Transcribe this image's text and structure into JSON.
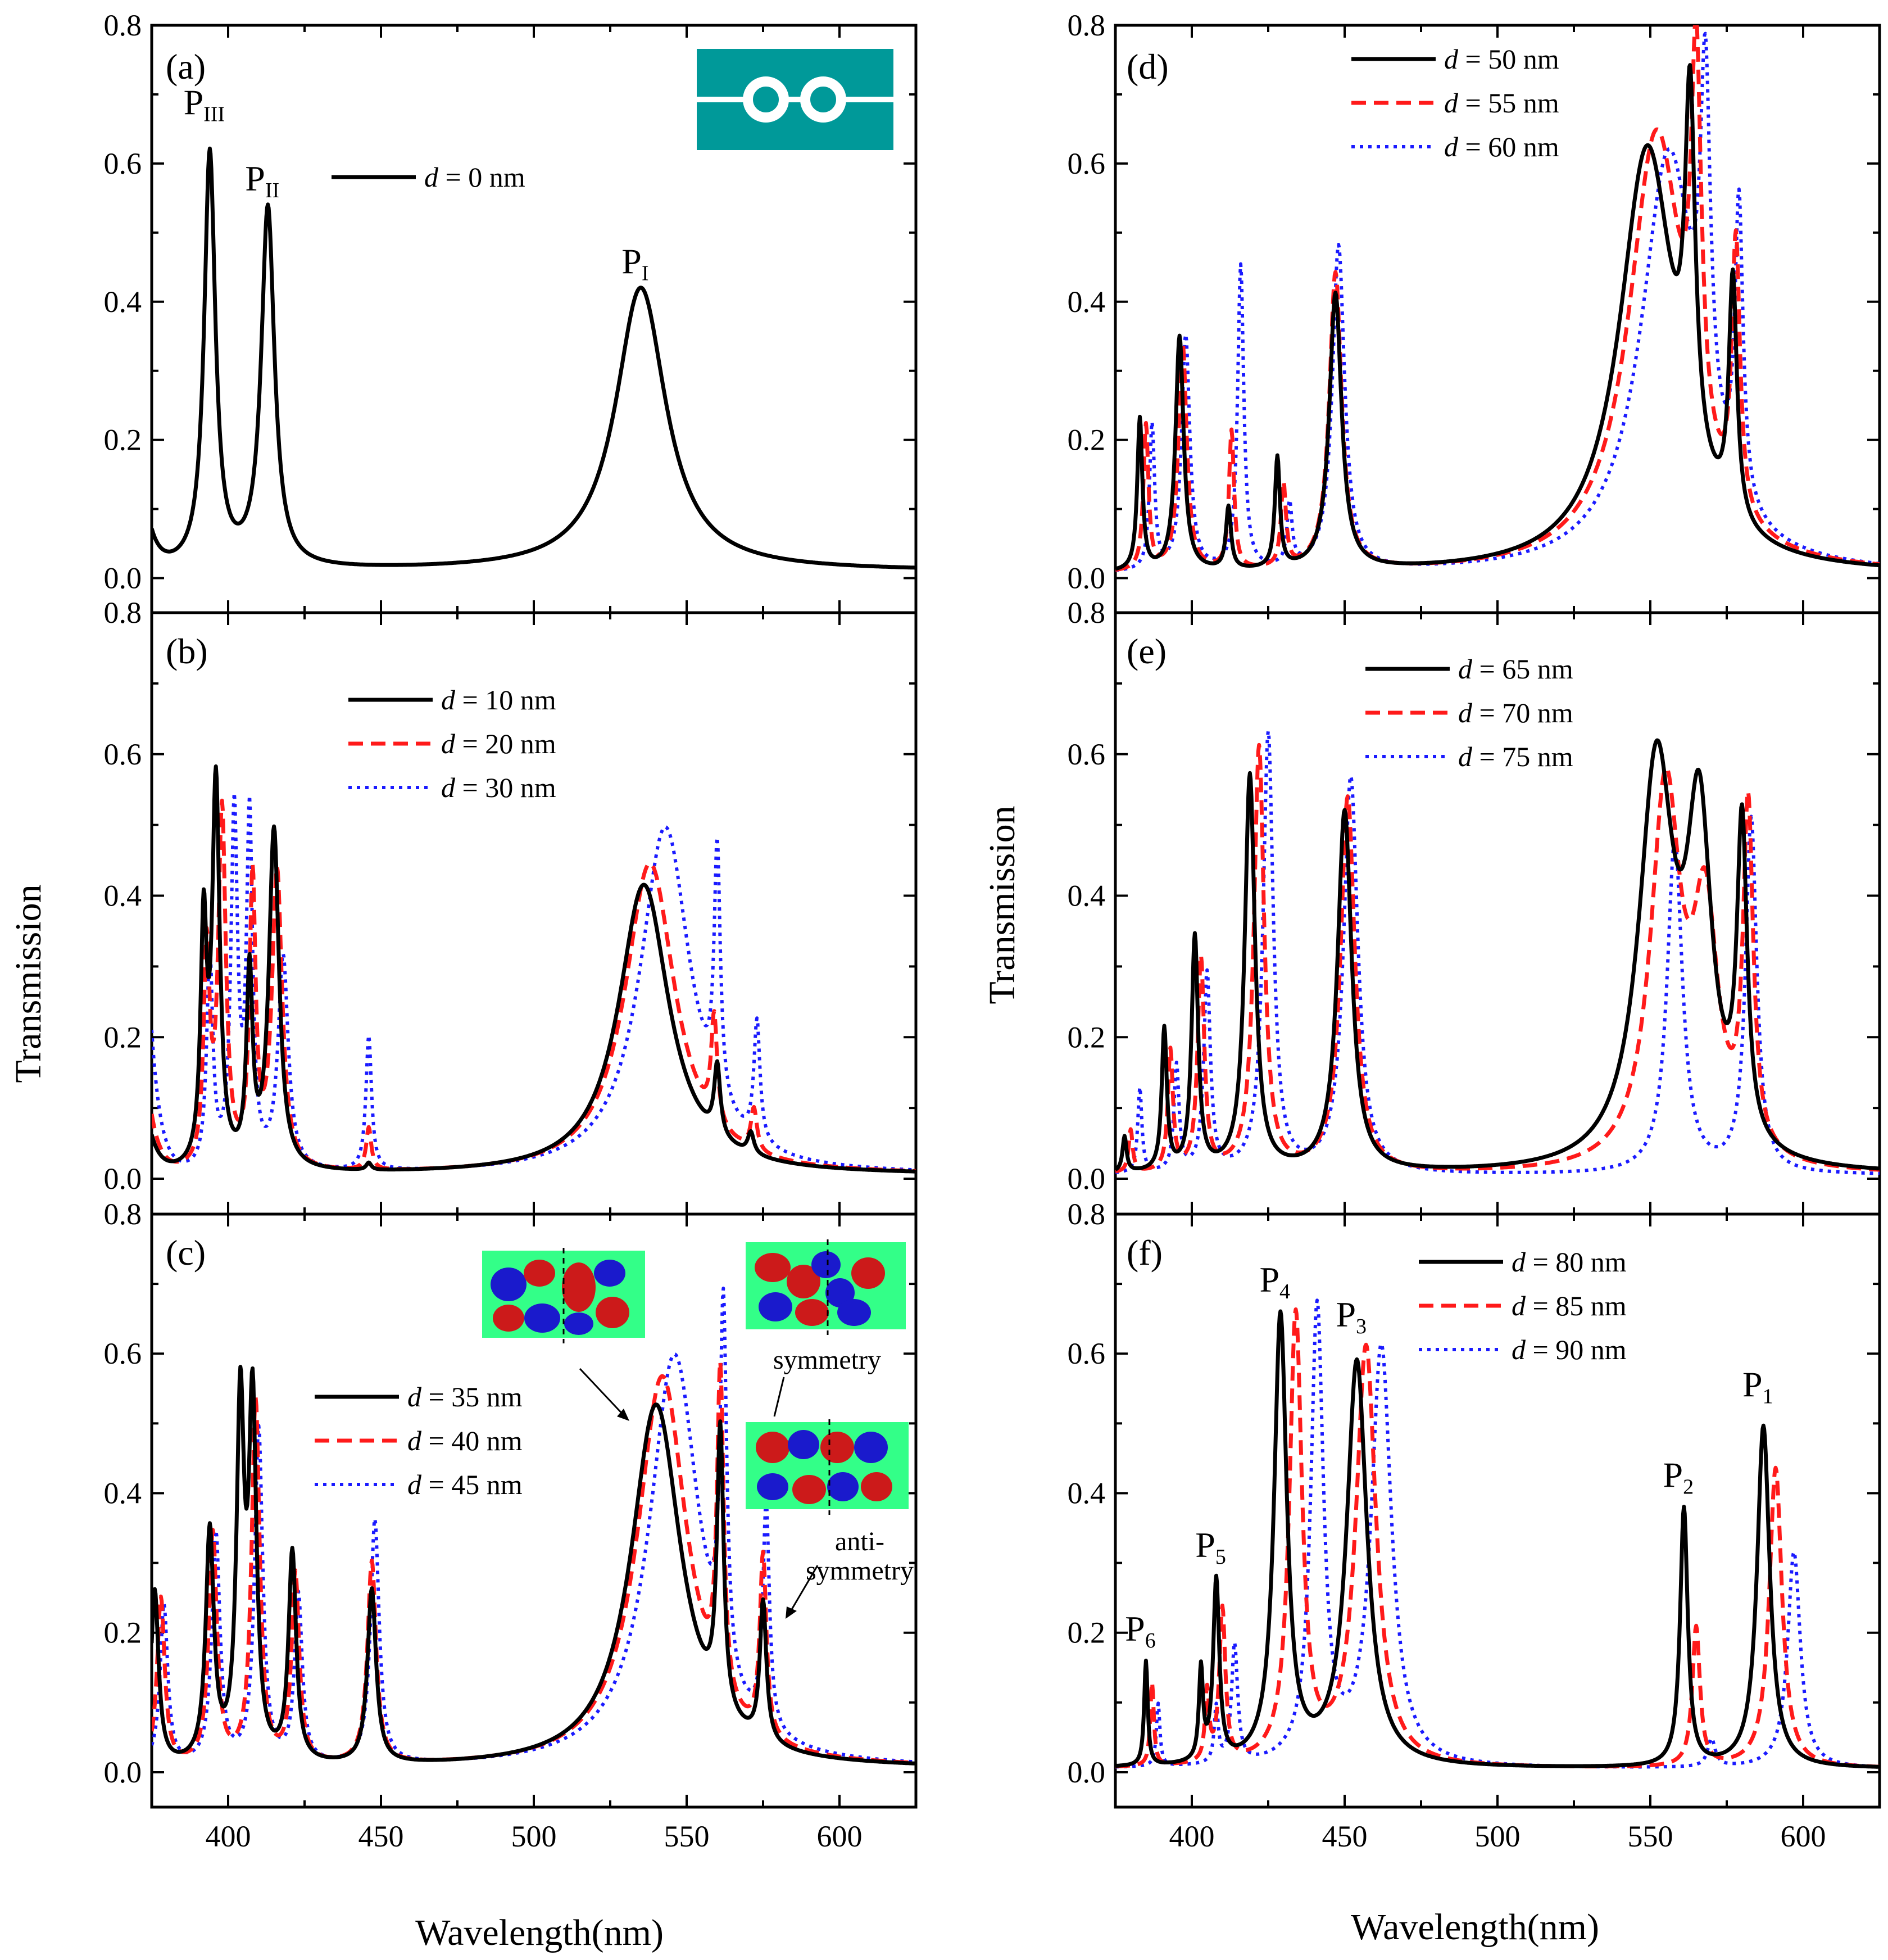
{
  "figure": {
    "x_axis_title": "Wavelength(nm)",
    "y_axis_title": "Transmission",
    "x_range": [
      375,
      625
    ],
    "y_range": [
      -0.05,
      0.8
    ],
    "x_ticks": [
      "400",
      "450",
      "500",
      "550",
      "600"
    ],
    "y_ticks": [
      "0.0",
      "0.2",
      "0.4",
      "0.6",
      "0.8"
    ],
    "colors": {
      "black": "#000000",
      "red": "#ff1a1a",
      "blue": "#1a1aff",
      "inset_bg": "#009999",
      "map_bg": "#33ff88"
    }
  },
  "chart_data": [
    {
      "panel": "a",
      "label": "(a)",
      "type": "line",
      "xlim": [
        375,
        625
      ],
      "ylim": [
        -0.05,
        0.8
      ],
      "series": [
        {
          "name": "d = 0 nm",
          "value": "0 nm",
          "style": "solid",
          "peaks": [
            [
              394,
              0.6,
              2.2
            ],
            [
              413,
              0.52,
              2.6
            ],
            [
              535,
              0.41,
              10
            ]
          ],
          "baseline": 0.01,
          "edge": 0.05
        }
      ],
      "peak_labels": [
        {
          "main": "P",
          "sub": "III",
          "x": 394,
          "y": 0.64
        },
        {
          "main": "P",
          "sub": "II",
          "x": 413,
          "y": 0.53
        },
        {
          "main": "P",
          "sub": "I",
          "x": 535,
          "y": 0.41
        }
      ]
    },
    {
      "panel": "b",
      "label": "(b)",
      "type": "line",
      "xlim": [
        375,
        625
      ],
      "ylim": [
        -0.05,
        0.8
      ],
      "series": [
        {
          "name": "d = 10 nm",
          "value": "10 nm",
          "style": "solid",
          "peaks": [
            [
              392,
              0.33,
              1.2
            ],
            [
              396,
              0.54,
              1.5
            ],
            [
              407,
              0.27,
              1.2
            ],
            [
              415,
              0.48,
              2.0
            ],
            [
              446,
              0.01,
              1
            ],
            [
              536,
              0.41,
              10
            ],
            [
              560,
              0.1,
              1.2
            ],
            [
              571,
              0.03,
              1.2
            ]
          ],
          "baseline": 0.005,
          "edge": 0.05
        },
        {
          "name": "d = 20 nm",
          "value": "20 nm",
          "style": "dashed",
          "peaks": [
            [
              393,
              0.3,
              1.2
            ],
            [
              398,
              0.5,
              1.5
            ],
            [
              408,
              0.4,
              1.2
            ],
            [
              416,
              0.42,
              2.0
            ],
            [
              446,
              0.06,
              1
            ],
            [
              538,
              0.44,
              10
            ],
            [
              559,
              0.15,
              1.2
            ],
            [
              572,
              0.06,
              1.2
            ]
          ],
          "baseline": 0.005,
          "edge": 0.08
        },
        {
          "name": "d = 30 nm",
          "value": "30 nm",
          "style": "dotted",
          "peaks": [
            [
              394,
              0.3,
              1.2
            ],
            [
              402,
              0.5,
              1.3
            ],
            [
              407,
              0.49,
              1.2
            ],
            [
              418,
              0.3,
              2.0
            ],
            [
              446,
              0.19,
              1.1
            ],
            [
              543,
              0.49,
              10
            ],
            [
              560,
              0.35,
              1.2
            ],
            [
              573,
              0.17,
              1.2
            ]
          ],
          "baseline": 0.005,
          "edge": 0.2
        }
      ]
    },
    {
      "panel": "c",
      "label": "(c)",
      "type": "line",
      "xlim": [
        375,
        625
      ],
      "ylim": [
        -0.05,
        0.8
      ],
      "series": [
        {
          "name": "d = 35 nm",
          "value": "35 nm",
          "style": "solid",
          "peaks": [
            [
              376,
              0.25,
              1.5
            ],
            [
              394,
              0.33,
              1.6
            ],
            [
              404,
              0.5,
              1.5
            ],
            [
              408,
              0.5,
              1.5
            ],
            [
              421,
              0.3,
              1.5
            ],
            [
              447,
              0.25,
              1.7
            ],
            [
              540,
              0.52,
              10
            ],
            [
              561,
              0.4,
              1.3
            ],
            [
              575,
              0.2,
              1.3
            ]
          ],
          "baseline": 0.005,
          "edge": 0.0
        },
        {
          "name": "d = 40 nm",
          "value": "40 nm",
          "style": "dashed",
          "peaks": [
            [
              378,
              0.24,
              1.5
            ],
            [
              395,
              0.33,
              1.6
            ],
            [
              409,
              0.52,
              1.6
            ],
            [
              422,
              0.27,
              1.5
            ],
            [
              447,
              0.29,
              1.7
            ],
            [
              542,
              0.56,
              10
            ],
            [
              561,
              0.46,
              1.3
            ],
            [
              575,
              0.26,
              1.3
            ]
          ],
          "baseline": 0.005,
          "edge": 0.0
        },
        {
          "name": "d = 45 nm",
          "value": "45 nm",
          "style": "dotted",
          "peaks": [
            [
              379,
              0.23,
              1.5
            ],
            [
              396,
              0.33,
              1.6
            ],
            [
              410,
              0.48,
              1.6
            ],
            [
              423,
              0.24,
              1.5
            ],
            [
              448,
              0.35,
              1.7
            ],
            [
              546,
              0.59,
              10
            ],
            [
              562,
              0.52,
              1.3
            ],
            [
              576,
              0.32,
              1.3
            ]
          ],
          "baseline": 0.005,
          "edge": 0.0
        }
      ],
      "annotations": [
        "symmetry",
        "anti-",
        "symmetry"
      ]
    },
    {
      "panel": "d",
      "label": "(d)",
      "type": "line",
      "xlim": [
        375,
        625
      ],
      "ylim": [
        -0.05,
        0.8
      ],
      "series": [
        {
          "name": "d = 50 nm",
          "value": "50 nm",
          "style": "solid",
          "peaks": [
            [
              383,
              0.22,
              1.0
            ],
            [
              396,
              0.34,
              1.6
            ],
            [
              412,
              0.09,
              1.0
            ],
            [
              428,
              0.16,
              1.0
            ],
            [
              447,
              0.4,
              2.4
            ],
            [
              549,
              0.61,
              11
            ],
            [
              563,
              0.5,
              2.0
            ],
            [
              577,
              0.35,
              1.6
            ]
          ],
          "baseline": 0.005,
          "edge": 0.0
        },
        {
          "name": "d = 55 nm",
          "value": "55 nm",
          "style": "dashed",
          "peaks": [
            [
              385,
              0.21,
              1.0
            ],
            [
              397,
              0.33,
              1.6
            ],
            [
              413,
              0.2,
              1.0
            ],
            [
              430,
              0.12,
              1.0
            ],
            [
              447,
              0.43,
              2.4
            ],
            [
              552,
              0.63,
              11
            ],
            [
              565,
              0.54,
              2.0
            ],
            [
              578,
              0.39,
              1.6
            ]
          ],
          "baseline": 0.005,
          "edge": 0.0
        },
        {
          "name": "d = 60 nm",
          "value": "60 nm",
          "style": "dotted",
          "peaks": [
            [
              387,
              0.21,
              1.0
            ],
            [
              398,
              0.34,
              1.6
            ],
            [
              416,
              0.44,
              1.2
            ],
            [
              432,
              0.09,
              1.0
            ],
            [
              448,
              0.47,
              2.4
            ],
            [
              556,
              0.6,
              11
            ],
            [
              568,
              0.5,
              2.0
            ],
            [
              579,
              0.43,
              1.6
            ]
          ],
          "baseline": 0.005,
          "edge": 0.0
        }
      ],
      "legend": {
        "names": [
          "d = 50 nm",
          "d = 55 nm",
          "d = 60 nm"
        ]
      }
    },
    {
      "panel": "e",
      "label": "(e)",
      "type": "line",
      "xlim": [
        375,
        625
      ],
      "ylim": [
        -0.05,
        0.8
      ],
      "series": [
        {
          "name": "d = 65 nm",
          "value": "65 nm",
          "style": "solid",
          "peaks": [
            [
              378,
              0.05,
              0.8
            ],
            [
              391,
              0.2,
              1.0
            ],
            [
              401,
              0.33,
              1.3
            ],
            [
              419,
              0.56,
              2.0
            ],
            [
              450,
              0.51,
              2.8
            ],
            [
              552,
              0.56,
              7
            ],
            [
              566,
              0.45,
              5
            ],
            [
              580,
              0.44,
              2.0
            ]
          ],
          "baseline": 0.005,
          "edge": 0.0
        },
        {
          "name": "d = 70 nm",
          "value": "70 nm",
          "style": "dashed",
          "peaks": [
            [
              380,
              0.06,
              0.8
            ],
            [
              393,
              0.17,
              1.0
            ],
            [
              403,
              0.3,
              1.3
            ],
            [
              422,
              0.6,
              2.0
            ],
            [
              451,
              0.53,
              2.8
            ],
            [
              555,
              0.53,
              6
            ],
            [
              568,
              0.33,
              5
            ],
            [
              582,
              0.48,
              2.0
            ]
          ],
          "baseline": 0.005,
          "edge": 0.0
        },
        {
          "name": "d = 75 nm",
          "value": "75 nm",
          "style": "dotted",
          "peaks": [
            [
              383,
              0.12,
              0.8
            ],
            [
              395,
              0.15,
              1.0
            ],
            [
              405,
              0.28,
              1.3
            ],
            [
              425,
              0.62,
              2.0
            ],
            [
              452,
              0.56,
              2.8
            ],
            [
              558,
              0.47,
              3.0
            ],
            [
              583,
              0.5,
              2.2
            ]
          ],
          "baseline": 0.005,
          "edge": 0.0
        }
      ]
    },
    {
      "panel": "f",
      "label": "(f)",
      "type": "line",
      "xlim": [
        375,
        625
      ],
      "ylim": [
        -0.05,
        0.8
      ],
      "series": [
        {
          "name": "d = 80 nm",
          "value": "80 nm",
          "style": "solid",
          "peaks": [
            [
              385,
              0.15,
              0.7
            ],
            [
              403,
              0.13,
              0.8
            ],
            [
              408,
              0.26,
              1.2
            ],
            [
              429,
              0.64,
              2.5
            ],
            [
              454,
              0.58,
              4.0
            ],
            [
              561,
              0.37,
              1.5
            ],
            [
              587,
              0.49,
              2.5
            ]
          ],
          "baseline": 0.005,
          "edge": 0.0
        },
        {
          "name": "d = 85 nm",
          "value": "85 nm",
          "style": "dashed",
          "peaks": [
            [
              387,
              0.12,
              0.7
            ],
            [
              405,
              0.1,
              0.8
            ],
            [
              410,
              0.22,
              1.2
            ],
            [
              434,
              0.64,
              2.5
            ],
            [
              457,
              0.6,
              4.0
            ],
            [
              565,
              0.2,
              1.5
            ],
            [
              591,
              0.43,
              2.5
            ]
          ],
          "baseline": 0.005,
          "edge": 0.0
        },
        {
          "name": "d = 90 nm",
          "value": "90 nm",
          "style": "dotted",
          "peaks": [
            [
              389,
              0.09,
              0.7
            ],
            [
              408,
              0.08,
              0.8
            ],
            [
              414,
              0.17,
              1.2
            ],
            [
              441,
              0.65,
              2.5
            ],
            [
              462,
              0.6,
              4.0
            ],
            [
              570,
              0.04,
              1.5
            ],
            [
              597,
              0.31,
              2.5
            ]
          ],
          "baseline": 0.005,
          "edge": 0.0
        }
      ],
      "peak_labels": [
        {
          "main": "P",
          "sub": "6",
          "x": 385,
          "y": 0.15
        },
        {
          "main": "P",
          "sub": "5",
          "x": 408,
          "y": 0.27
        },
        {
          "main": "P",
          "sub": "4",
          "x": 429,
          "y": 0.65
        },
        {
          "main": "P",
          "sub": "3",
          "x": 454,
          "y": 0.6
        },
        {
          "main": "P",
          "sub": "2",
          "x": 561,
          "y": 0.37
        },
        {
          "main": "P",
          "sub": "1",
          "x": 587,
          "y": 0.5
        }
      ]
    }
  ]
}
